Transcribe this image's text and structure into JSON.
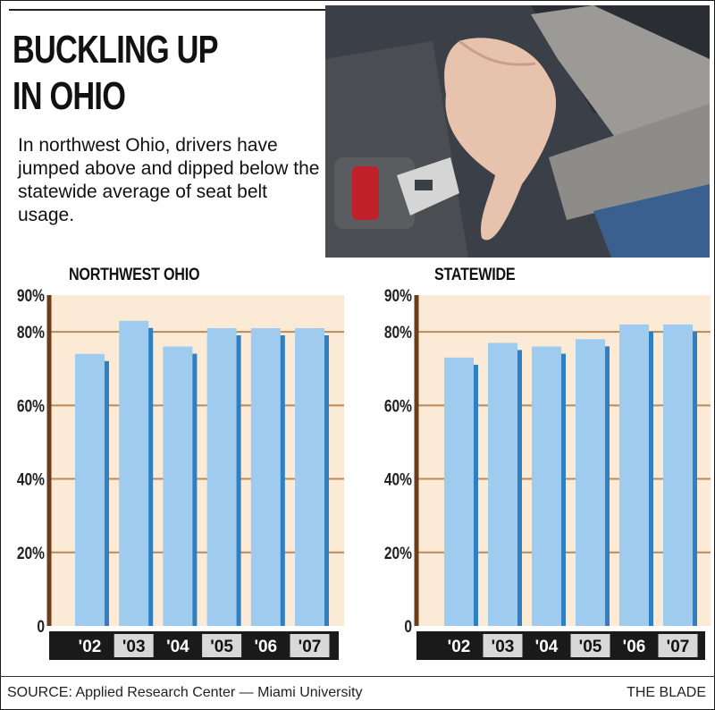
{
  "header": {
    "title": "BUCKLING UP\nIN OHIO",
    "subtitle": "In northwest Ohio, drivers have jumped above and dipped below the statewide average of seat belt usage."
  },
  "footer": {
    "source": "SOURCE: Applied Research Center — Miami University",
    "credit": "THE BLADE"
  },
  "colors": {
    "bar": "#9ecbee",
    "bar_shadow": "#2e7fc4",
    "plot_bg": "#fbebd6",
    "axis": "#6b3d1c",
    "grid": "#b88a5e",
    "label_dark_bg": "#1a1a1a",
    "label_light_bg": "#d8d8d8"
  },
  "chart_data": [
    {
      "type": "bar",
      "title": "NORTHWEST OHIO",
      "categories": [
        "'02",
        "'03",
        "'04",
        "'05",
        "'06",
        "'07"
      ],
      "values": [
        74,
        83,
        76,
        81,
        81,
        81
      ],
      "yticks": [
        "0",
        "20%",
        "40%",
        "60%",
        "80%",
        "90%"
      ],
      "ytick_values": [
        0,
        20,
        40,
        60,
        80,
        90
      ],
      "ylim": [
        0,
        90
      ],
      "grid": true
    },
    {
      "type": "bar",
      "title": "STATEWIDE",
      "categories": [
        "'02",
        "'03",
        "'04",
        "'05",
        "'06",
        "'07"
      ],
      "values": [
        73,
        77,
        76,
        78,
        82,
        82
      ],
      "yticks": [
        "0",
        "20%",
        "40%",
        "60%",
        "80%",
        "90%"
      ],
      "ytick_values": [
        0,
        20,
        40,
        60,
        80,
        90
      ],
      "ylim": [
        0,
        90
      ],
      "grid": true
    }
  ]
}
